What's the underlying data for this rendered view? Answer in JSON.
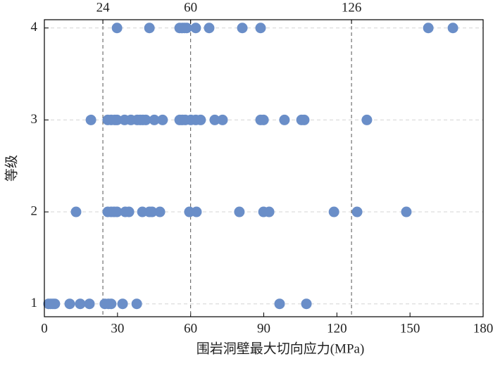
{
  "chart_data": {
    "type": "scatter",
    "x_label": "围岩洞壁最大切向应力(MPa)",
    "y_label": "等级",
    "color": "#6a8ec8",
    "x": [
      29.8,
      43.1,
      55.5,
      56.6,
      57.5,
      58.4,
      62.1,
      67.6,
      81.2,
      88.7,
      157.5,
      167.6,
      19.1,
      26.0,
      27.4,
      28.9,
      29.8,
      32.9,
      35.5,
      38.1,
      39.3,
      40.4,
      41.6,
      45.1,
      48.5,
      55.5,
      56.6,
      57.8,
      60.1,
      62.1,
      64.1,
      69.9,
      73.1,
      88.7,
      89.9,
      98.5,
      105.5,
      106.6,
      132.3,
      13.0,
      26.0,
      27.4,
      28.6,
      29.8,
      33.2,
      34.7,
      40.2,
      43.1,
      44.2,
      47.4,
      59.5,
      62.4,
      80.0,
      89.9,
      92.2,
      118.8,
      128.3,
      148.5,
      1.7,
      2.6,
      3.5,
      4.3,
      10.4,
      14.7,
      18.5,
      24.8,
      26.3,
      27.4,
      32.1,
      37.9,
      96.5,
      107.5
    ],
    "y": [
      4,
      4,
      4,
      4,
      4,
      4,
      4,
      4,
      4,
      4,
      4,
      4,
      3,
      3,
      3,
      3,
      3,
      3,
      3,
      3,
      3,
      3,
      3,
      3,
      3,
      3,
      3,
      3,
      3,
      3,
      3,
      3,
      3,
      3,
      3,
      3,
      3,
      3,
      3,
      2,
      2,
      2,
      2,
      2,
      2,
      2,
      2,
      2,
      2,
      2,
      2,
      2,
      2,
      2,
      2,
      2,
      2,
      2,
      1,
      1,
      1,
      1,
      1,
      1,
      1,
      1,
      1,
      1,
      1,
      1,
      1,
      1
    ],
    "xlim": [
      0,
      180
    ],
    "xticks": [
      0,
      30,
      60,
      90,
      120,
      150,
      180
    ],
    "ylim": [
      0.86,
      4.09
    ],
    "yticks": [
      1,
      2,
      3,
      4
    ],
    "x2ticks": [
      24,
      60,
      126
    ],
    "grid": true
  }
}
